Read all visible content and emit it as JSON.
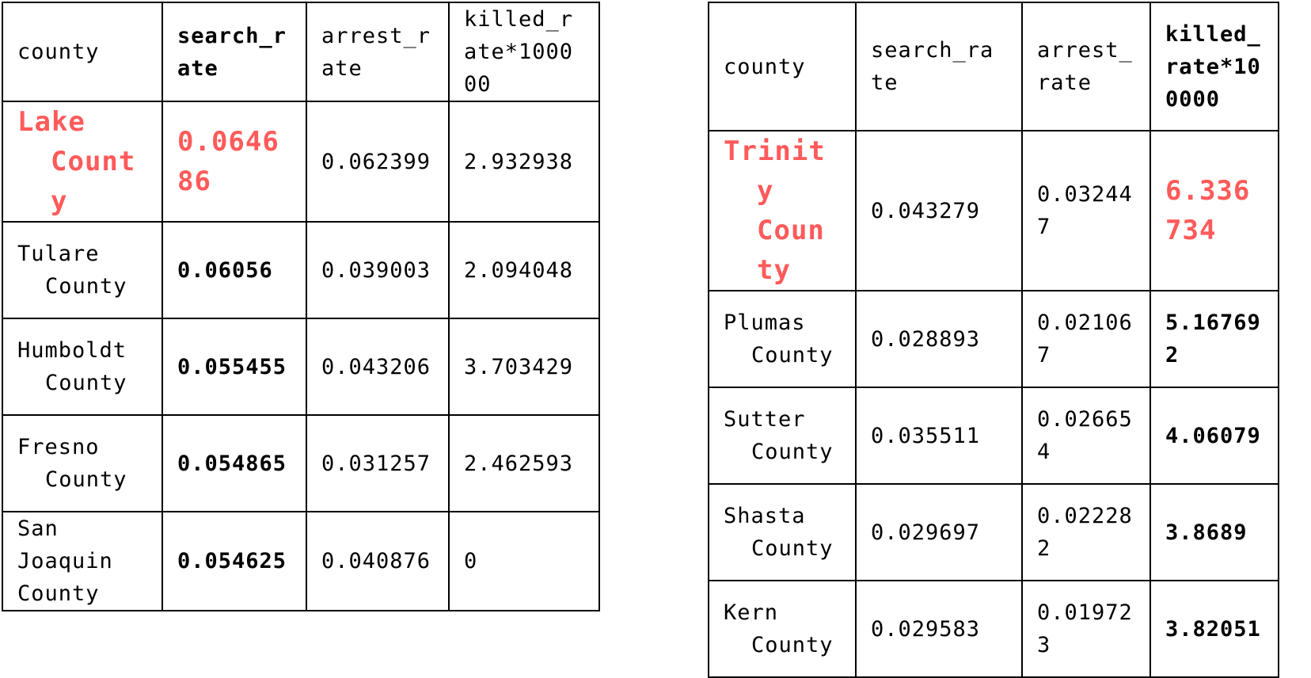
{
  "left_table": {
    "columns": [
      "county",
      "search_rate",
      "arrest_rate",
      "killed_rate*100000"
    ],
    "rows": [
      [
        "Lake County",
        "0.064686",
        "0.062399",
        "2.932938"
      ],
      [
        "Tulare County",
        "0.06056",
        "0.039003",
        "2.094048"
      ],
      [
        "Humboldt County",
        "0.055455",
        "0.043206",
        "3.703429"
      ],
      [
        "Fresno County",
        "0.054865",
        "0.031257",
        "2.462593"
      ],
      [
        "San Joaquin County",
        "0.054625",
        "0.040876",
        "0"
      ]
    ],
    "bold_column": "search_rate",
    "highlight_row": "Lake County"
  },
  "right_table": {
    "columns": [
      "county",
      "search_rate",
      "arrest_rate",
      "killed_rate*100000"
    ],
    "rows": [
      [
        "Trinity County",
        "0.043279",
        "0.032447",
        "6.336734"
      ],
      [
        "Plumas County",
        "0.028893",
        "0.021067",
        "5.167692"
      ],
      [
        "Sutter County",
        "0.035511",
        "0.026654",
        "4.06079"
      ],
      [
        "Shasta County",
        "0.029697",
        "0.022282",
        "3.8689"
      ],
      [
        "Kern County",
        "0.029583",
        "0.019723",
        "3.82051"
      ]
    ],
    "bold_column": "killed_rate*100000",
    "highlight_row": "Trinity County"
  },
  "colors": {
    "highlight": "#ff5a5a",
    "text": "#000000",
    "border": "#000000"
  }
}
